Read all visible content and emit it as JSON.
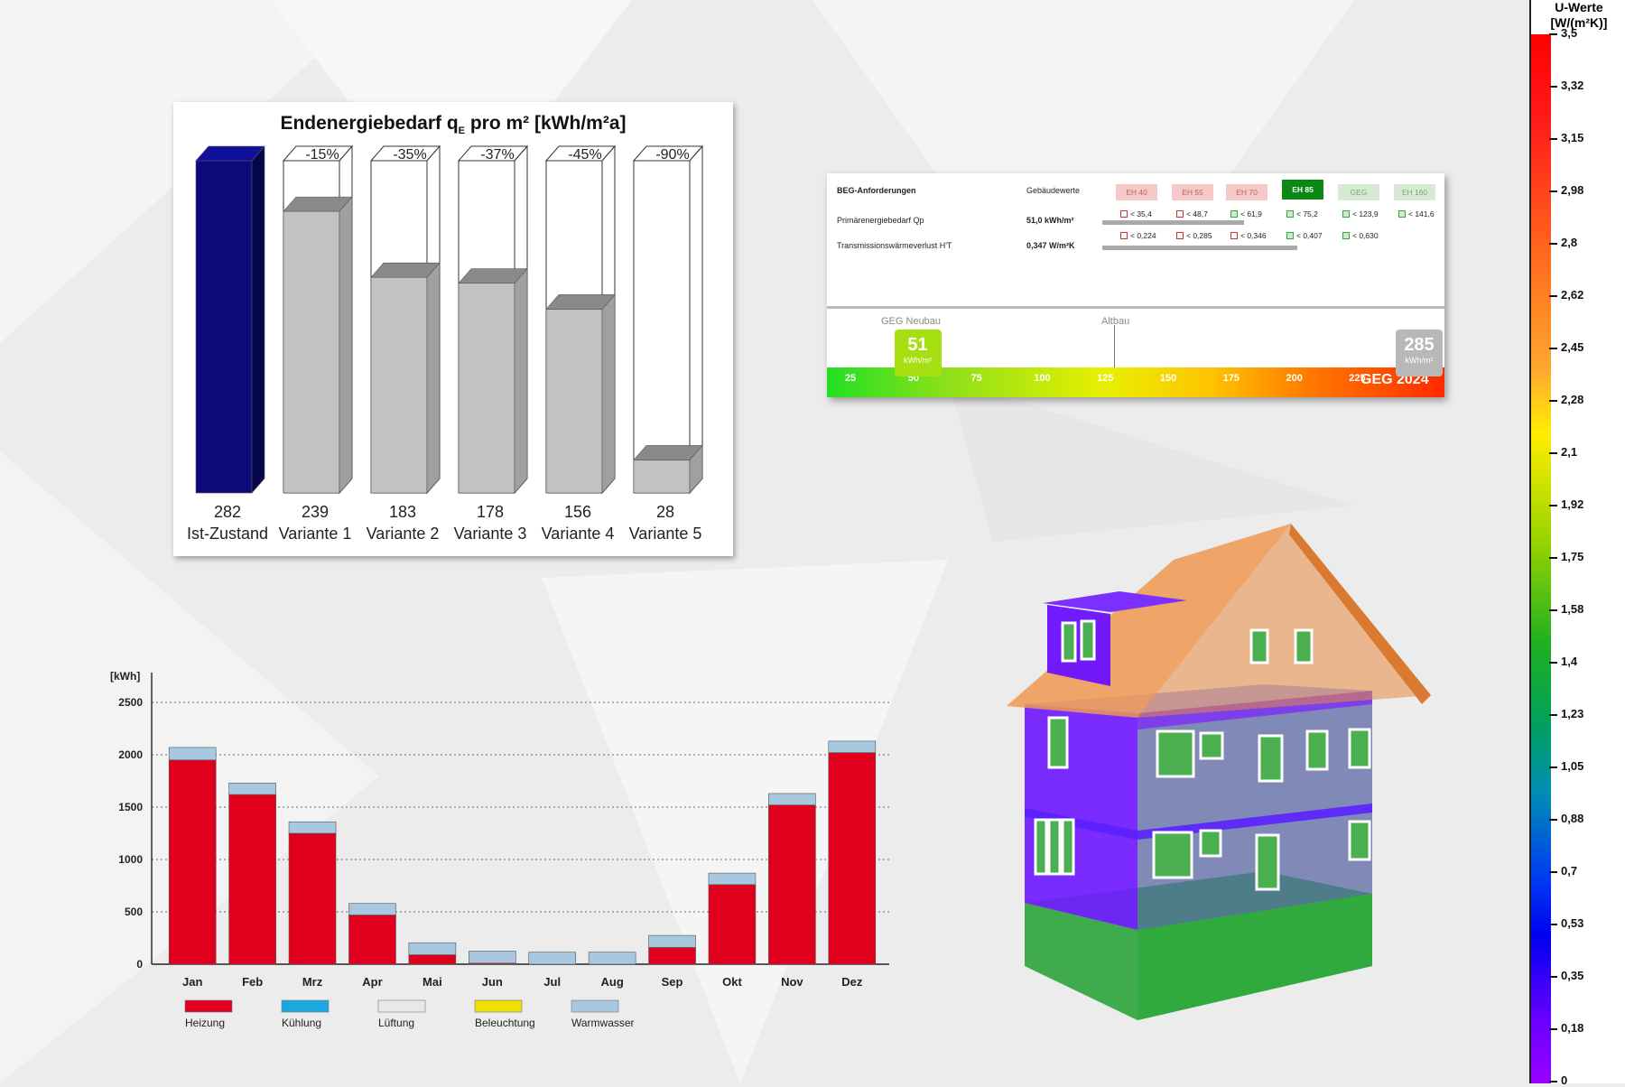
{
  "chart_data": [
    {
      "type": "bar",
      "title": "Endenergiebedarf q",
      "title_sub": "E",
      "title_suffix": " pro m²  [kWh/m²a]",
      "categories": [
        "Ist-Zustand",
        "Variante 1",
        "Variante 2",
        "Variante 3",
        "Variante 4",
        "Variante 5"
      ],
      "values": [
        282,
        239,
        183,
        178,
        156,
        28
      ],
      "value_labels": [
        "282",
        "239",
        "183",
        "178",
        "156",
        "28"
      ],
      "reduction_labels": [
        "",
        "-15%",
        "-35%",
        "-37%",
        "-45%",
        "-90%"
      ],
      "reference": 282,
      "colors": {
        "base": "#0a0a7a",
        "variant": "#c2c2c2"
      }
    },
    {
      "type": "bar",
      "stacked": true,
      "ylabel": "[kWh]",
      "ylim": [
        0,
        2500
      ],
      "yticks": [
        "0",
        "500",
        "1000",
        "1500",
        "2000",
        "2500"
      ],
      "categories": [
        "Jan",
        "Feb",
        "Mrz",
        "Apr",
        "Mai",
        "Jun",
        "Jul",
        "Aug",
        "Sep",
        "Okt",
        "Nov",
        "Dez"
      ],
      "series": [
        {
          "name": "Heizung",
          "color": "#e0001e",
          "values": [
            1950,
            1620,
            1250,
            470,
            90,
            10,
            0,
            0,
            160,
            760,
            1520,
            2020
          ]
        },
        {
          "name": "Kühlung",
          "color": "#1aa8e0",
          "values": [
            0,
            0,
            0,
            0,
            0,
            0,
            0,
            0,
            0,
            0,
            0,
            0
          ]
        },
        {
          "name": "Lüftung",
          "color": "#e8e8e8",
          "values": [
            0,
            0,
            0,
            0,
            0,
            0,
            0,
            0,
            0,
            0,
            0,
            0
          ]
        },
        {
          "name": "Beleuchtung",
          "color": "#f0e000",
          "values": [
            0,
            0,
            0,
            0,
            0,
            0,
            0,
            0,
            0,
            0,
            0,
            0
          ]
        },
        {
          "name": "Warmwasser",
          "color": "#a8c8e0",
          "values": [
            120,
            110,
            110,
            110,
            115,
            115,
            115,
            115,
            115,
            110,
            110,
            110
          ]
        }
      ]
    },
    {
      "type": "table",
      "headers": {
        "title": "BEG-Anforderungen",
        "values": "Gebäudewerte"
      },
      "classes": [
        {
          "label": "EH 40",
          "state": "fail"
        },
        {
          "label": "EH 55",
          "state": "fail"
        },
        {
          "label": "EH 70",
          "state": "fail"
        },
        {
          "label": "EH 85",
          "state": "active"
        },
        {
          "label": "GEG",
          "state": "ok"
        },
        {
          "label": "EH 160",
          "state": "ok"
        }
      ],
      "rows": [
        {
          "label": "Primärenergiebedarf Qp",
          "value": "51,0 kWh/m²",
          "limits": [
            "< 35,4",
            "< 48,7",
            "< 61,9",
            "< 75,2",
            "< 123,9",
            "< 141,6"
          ],
          "pass": [
            false,
            false,
            true,
            true,
            true,
            true
          ]
        },
        {
          "label": "Transmissionswärmeverlust H'T",
          "value": "0,347 W/m²K",
          "limits": [
            "< 0,224",
            "< 0,285",
            "< 0,346",
            "< 0,407",
            "< 0,630",
            ""
          ],
          "pass": [
            false,
            false,
            false,
            true,
            true,
            null
          ]
        }
      ],
      "scale": {
        "ticks": [
          "25",
          "50",
          "75",
          "100",
          "125",
          "150",
          "175",
          "200",
          "225"
        ],
        "min": 15,
        "max": 260,
        "labels": {
          "neubau": "GEG Neubau",
          "altbau": "Altbau",
          "geg": "GEG 2024"
        },
        "current": {
          "value": "51",
          "unit": "kWh/m²",
          "pos": 51
        },
        "altbau_pos": 129,
        "max_marker": {
          "value": "285",
          "unit": "kWh/m²"
        }
      }
    }
  ],
  "uwerte": {
    "title_line1": "U-Werte",
    "title_line2": "[W/(m²K)]",
    "ticks": [
      "3,5",
      "3,32",
      "3,15",
      "2,98",
      "2,8",
      "2,62",
      "2,45",
      "2,28",
      "2,1",
      "1,92",
      "1,75",
      "1,58",
      "1,4",
      "1,23",
      "1,05",
      "0,88",
      "0,7",
      "0,53",
      "0,35",
      "0,18",
      "0"
    ]
  },
  "model": {
    "name": "house-3d-model"
  }
}
